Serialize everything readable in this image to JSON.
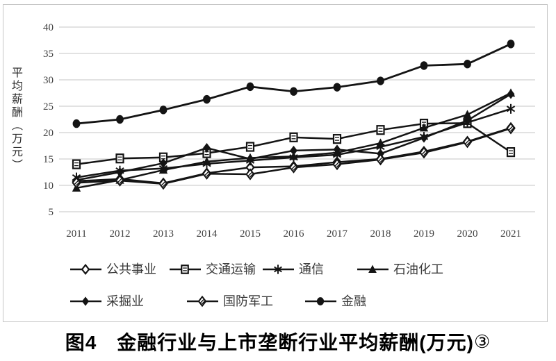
{
  "figure": {
    "ylabel": "平均薪酬（万元）",
    "caption": {
      "text": "图4　金融行业与上市垄断行业平均薪酬(万元)",
      "footnote": "③"
    }
  },
  "chart_data": {
    "type": "line",
    "title": "",
    "xlabel": "",
    "ylabel": "平均薪酬（万元）",
    "ylim": [
      5,
      40
    ],
    "yticks": [
      40,
      35,
      30,
      25,
      20,
      15,
      10,
      5
    ],
    "grid": "horizontal",
    "legend_position": "bottom",
    "categories": [
      "2011",
      "2012",
      "2013",
      "2014",
      "2015",
      "2016",
      "2017",
      "2018",
      "2019",
      "2020",
      "2021"
    ],
    "series": [
      {
        "key": "public-utilities",
        "name": "公共事业",
        "marker": "diamond-open-icon",
        "values": [
          10.8,
          11.2,
          10.4,
          12.3,
          13.4,
          13.6,
          14.4,
          15.0,
          16.4,
          18.3,
          20.9
        ]
      },
      {
        "key": "transportation",
        "name": "交通运输",
        "marker": "square-hatched-icon",
        "values": [
          14.0,
          15.1,
          15.3,
          16.1,
          17.3,
          19.1,
          18.8,
          20.5,
          21.7,
          21.8,
          16.3
        ]
      },
      {
        "key": "telecom",
        "name": "通信",
        "marker": "asterisk-icon",
        "values": [
          11.5,
          12.8,
          13.2,
          14.1,
          14.7,
          15.3,
          15.8,
          17.3,
          19.2,
          21.9,
          24.5
        ]
      },
      {
        "key": "petrochemical",
        "name": "石油化工",
        "marker": "triangle-filled-icon",
        "values": [
          9.5,
          11.0,
          12.9,
          14.5,
          15.2,
          15.5,
          16.2,
          18.0,
          20.9,
          23.4,
          27.5
        ]
      },
      {
        "key": "mining",
        "name": "采掘业",
        "marker": "diamond-filled-icon",
        "values": [
          11.0,
          12.5,
          14.2,
          17.1,
          15.0,
          16.6,
          16.8,
          16.0,
          19.0,
          22.3,
          27.3
        ]
      },
      {
        "key": "defense",
        "name": "国防军工",
        "marker": "diamond-hatched-icon",
        "values": [
          10.5,
          10.9,
          10.3,
          12.2,
          12.1,
          13.4,
          14.0,
          14.9,
          16.2,
          18.2,
          20.8
        ]
      },
      {
        "key": "finance",
        "name": "金融",
        "marker": "circle-filled-icon",
        "values": [
          21.7,
          22.5,
          24.3,
          26.3,
          28.7,
          27.8,
          28.6,
          29.8,
          32.7,
          33.0,
          36.8
        ]
      }
    ]
  },
  "colors": {
    "series": "#141414",
    "gridline": "#d9d9d9",
    "border": "#c6c6c6",
    "tick_text": "#3f3f3f",
    "legend_text": "#3a3a3a",
    "caption_text": "#000000"
  }
}
